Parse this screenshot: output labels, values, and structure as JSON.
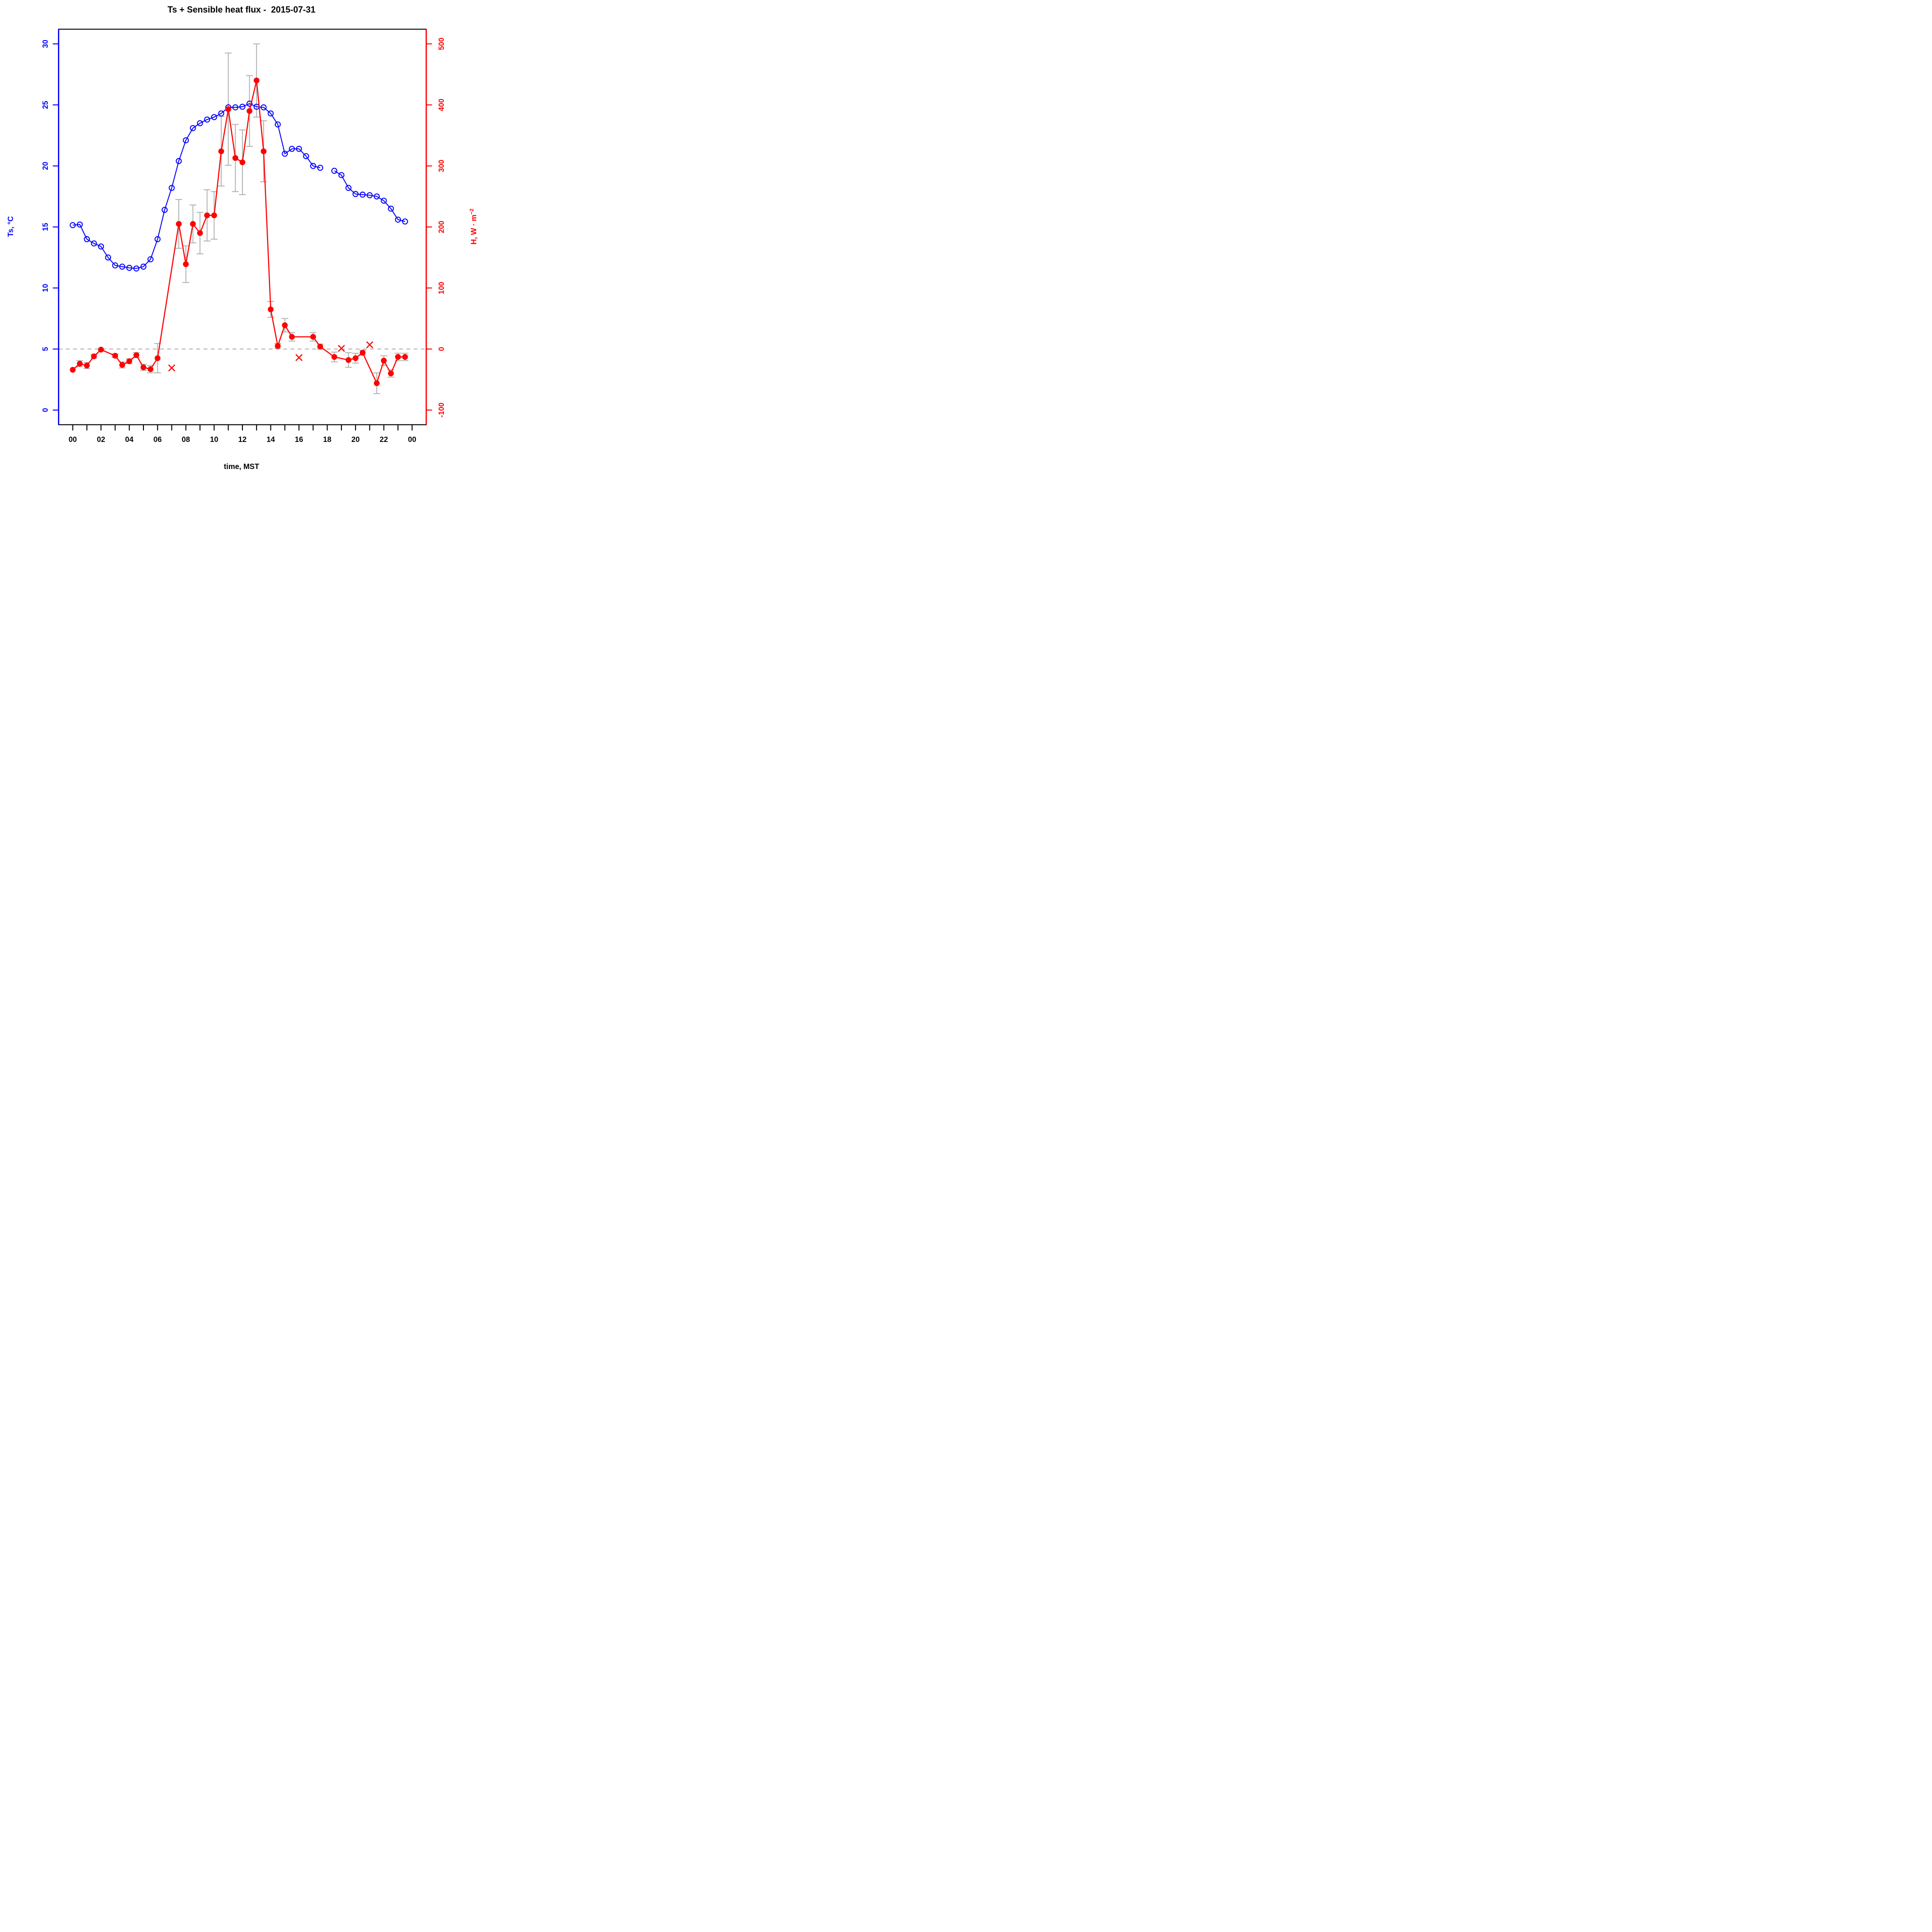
{
  "chart_data": {
    "type": "line",
    "title": "Ts + Sensible heat flux -  2015-07-31",
    "xlabel": "time, MST",
    "categories": [
      "00:00",
      "00:30",
      "01:00",
      "01:30",
      "02:00",
      "02:30",
      "03:00",
      "03:30",
      "04:00",
      "04:30",
      "05:00",
      "05:30",
      "06:00",
      "06:30",
      "07:00",
      "07:30",
      "08:00",
      "08:30",
      "09:00",
      "09:30",
      "10:00",
      "10:30",
      "11:00",
      "11:30",
      "12:00",
      "12:30",
      "13:00",
      "13:30",
      "14:00",
      "14:30",
      "15:00",
      "15:30",
      "16:00",
      "16:30",
      "17:00",
      "17:30",
      "18:00",
      "18:30",
      "19:00",
      "19:30",
      "20:00",
      "20:30",
      "21:00",
      "21:30",
      "22:00",
      "22:30",
      "23:00",
      "23:30"
    ],
    "series": [
      {
        "name": "Ts",
        "axis": "left",
        "color": "#0000ff",
        "marker": "open-circle",
        "line_breaks_at_gaps": true,
        "values": [
          15.15,
          15.2,
          14.0,
          13.65,
          13.4,
          12.5,
          11.85,
          11.75,
          11.65,
          11.6,
          11.75,
          12.35,
          14.0,
          16.4,
          18.2,
          20.4,
          22.1,
          23.1,
          23.5,
          23.8,
          24.0,
          24.3,
          24.8,
          24.8,
          24.85,
          25.1,
          24.85,
          24.8,
          24.3,
          23.4,
          21.0,
          21.4,
          21.4,
          20.8,
          20.0,
          19.85,
          null,
          19.6,
          19.25,
          18.2,
          17.7,
          17.65,
          17.6,
          17.5,
          17.15,
          16.5,
          15.6,
          15.45
        ]
      },
      {
        "name": "H",
        "axis": "right",
        "color": "#ff0000",
        "marker": "filled-circle",
        "line_breaks_at_gaps": false,
        "values": [
          -34,
          -24,
          -27,
          -12,
          -1,
          null,
          -11,
          -26,
          -20,
          -10,
          -30,
          -33,
          -15,
          null,
          null,
          205,
          139,
          205,
          190,
          219,
          219,
          324,
          393,
          313,
          306,
          390,
          440,
          324,
          65,
          5,
          39,
          20,
          null,
          null,
          20,
          4,
          null,
          -13,
          null,
          -18,
          -15,
          -6,
          null,
          -56,
          -19,
          -40,
          -13,
          -13
        ],
        "errors": [
          null,
          5,
          5,
          3,
          null,
          null,
          3,
          5,
          4,
          4,
          5,
          6,
          24,
          null,
          null,
          40,
          30,
          31,
          34,
          42,
          39,
          57,
          92,
          55,
          53,
          58,
          60,
          50,
          13,
          4,
          11,
          7,
          null,
          null,
          7,
          4,
          null,
          8,
          null,
          12,
          8,
          4,
          null,
          17,
          8,
          6,
          6,
          6
        ],
        "error_bar_color": "#b3b3b3"
      }
    ],
    "outliers": {
      "name": "H flagged points",
      "marker": "x-cross",
      "color": "#ff0000",
      "points": [
        {
          "time": "07:00",
          "value": -31
        },
        {
          "time": "16:00",
          "value": -14
        },
        {
          "time": "19:00",
          "value": 1
        },
        {
          "time": "21:00",
          "value": 7
        }
      ]
    },
    "zero_line": {
      "axis": "right",
      "value": 0,
      "style": "dashed",
      "color": "#b3b3b3"
    },
    "axes": {
      "x": {
        "label": "time, MST",
        "tick_hours": [
          0,
          1,
          2,
          3,
          4,
          5,
          6,
          7,
          8,
          9,
          10,
          11,
          12,
          13,
          14,
          15,
          16,
          17,
          18,
          19,
          20,
          21,
          22,
          23,
          24
        ],
        "labeled_tick_hours": [
          0,
          2,
          4,
          6,
          8,
          10,
          12,
          14,
          16,
          18,
          20,
          22,
          24
        ],
        "tick_labels": [
          "00",
          "02",
          "04",
          "06",
          "08",
          "10",
          "12",
          "14",
          "16",
          "18",
          "20",
          "22",
          "00"
        ],
        "lim": [
          -1,
          25
        ],
        "color": "#000000"
      },
      "left": {
        "label": "Ts, °C",
        "ticks": [
          0,
          5,
          10,
          15,
          20,
          25,
          30
        ],
        "tick_labels": [
          "0",
          "5",
          "10",
          "15",
          "20",
          "25",
          "30"
        ],
        "lim": [
          -1.2,
          31.2
        ],
        "color": "#0000ff"
      },
      "right": {
        "label_base": "H, W · m",
        "label_sup": "−2",
        "ticks": [
          -100,
          0,
          100,
          200,
          300,
          400,
          500
        ],
        "tick_labels": [
          "-100",
          "0",
          "100",
          "200",
          "300",
          "400",
          "500"
        ],
        "lim": [
          -124,
          524
        ],
        "color": "#ff0000"
      }
    },
    "grid": "off",
    "legend": "none"
  }
}
